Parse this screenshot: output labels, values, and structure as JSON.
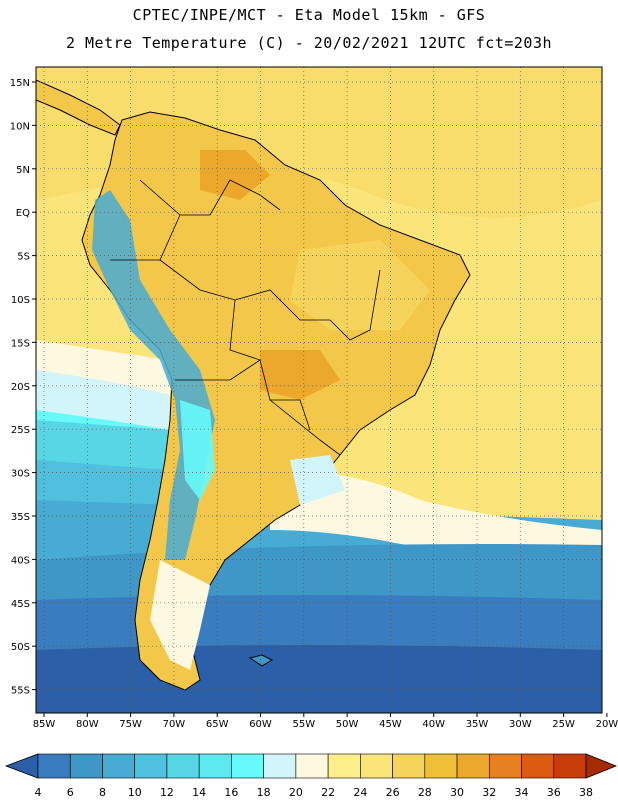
{
  "header": {
    "line1": "CPTEC/INPE/MCT -  Eta Model 15km - GFS",
    "line2": "2 Metre Temperature (C) - 20/02/2021 12UTC fct=203h"
  },
  "map": {
    "lon_ticks": [
      "85W",
      "80W",
      "75W",
      "70W",
      "65W",
      "60W",
      "55W",
      "50W",
      "45W",
      "40W",
      "35W",
      "30W",
      "25W",
      "20W"
    ],
    "lat_ticks": [
      "15N",
      "10N",
      "5N",
      "EQ",
      "5S",
      "10S",
      "15S",
      "20S",
      "25S",
      "30S",
      "35S",
      "40S",
      "45S",
      "50S",
      "55S"
    ]
  },
  "colorbar": {
    "labels": [
      "4",
      "6",
      "8",
      "10",
      "12",
      "14",
      "16",
      "18",
      "20",
      "22",
      "24",
      "26",
      "28",
      "30",
      "32",
      "34",
      "36",
      "38"
    ],
    "colors": [
      "#2b5fa8",
      "#3a7cc0",
      "#3f97c8",
      "#48abd4",
      "#4fc0dd",
      "#58d6e6",
      "#5ee8f0",
      "#66fafa",
      "#d2f4fb",
      "#fdf8e0",
      "#fdf08a",
      "#fbe57a",
      "#f6d45c",
      "#f0c038",
      "#eca82a",
      "#e68020",
      "#dc5a12",
      "#c83c0a",
      "#a62a05"
    ]
  }
}
